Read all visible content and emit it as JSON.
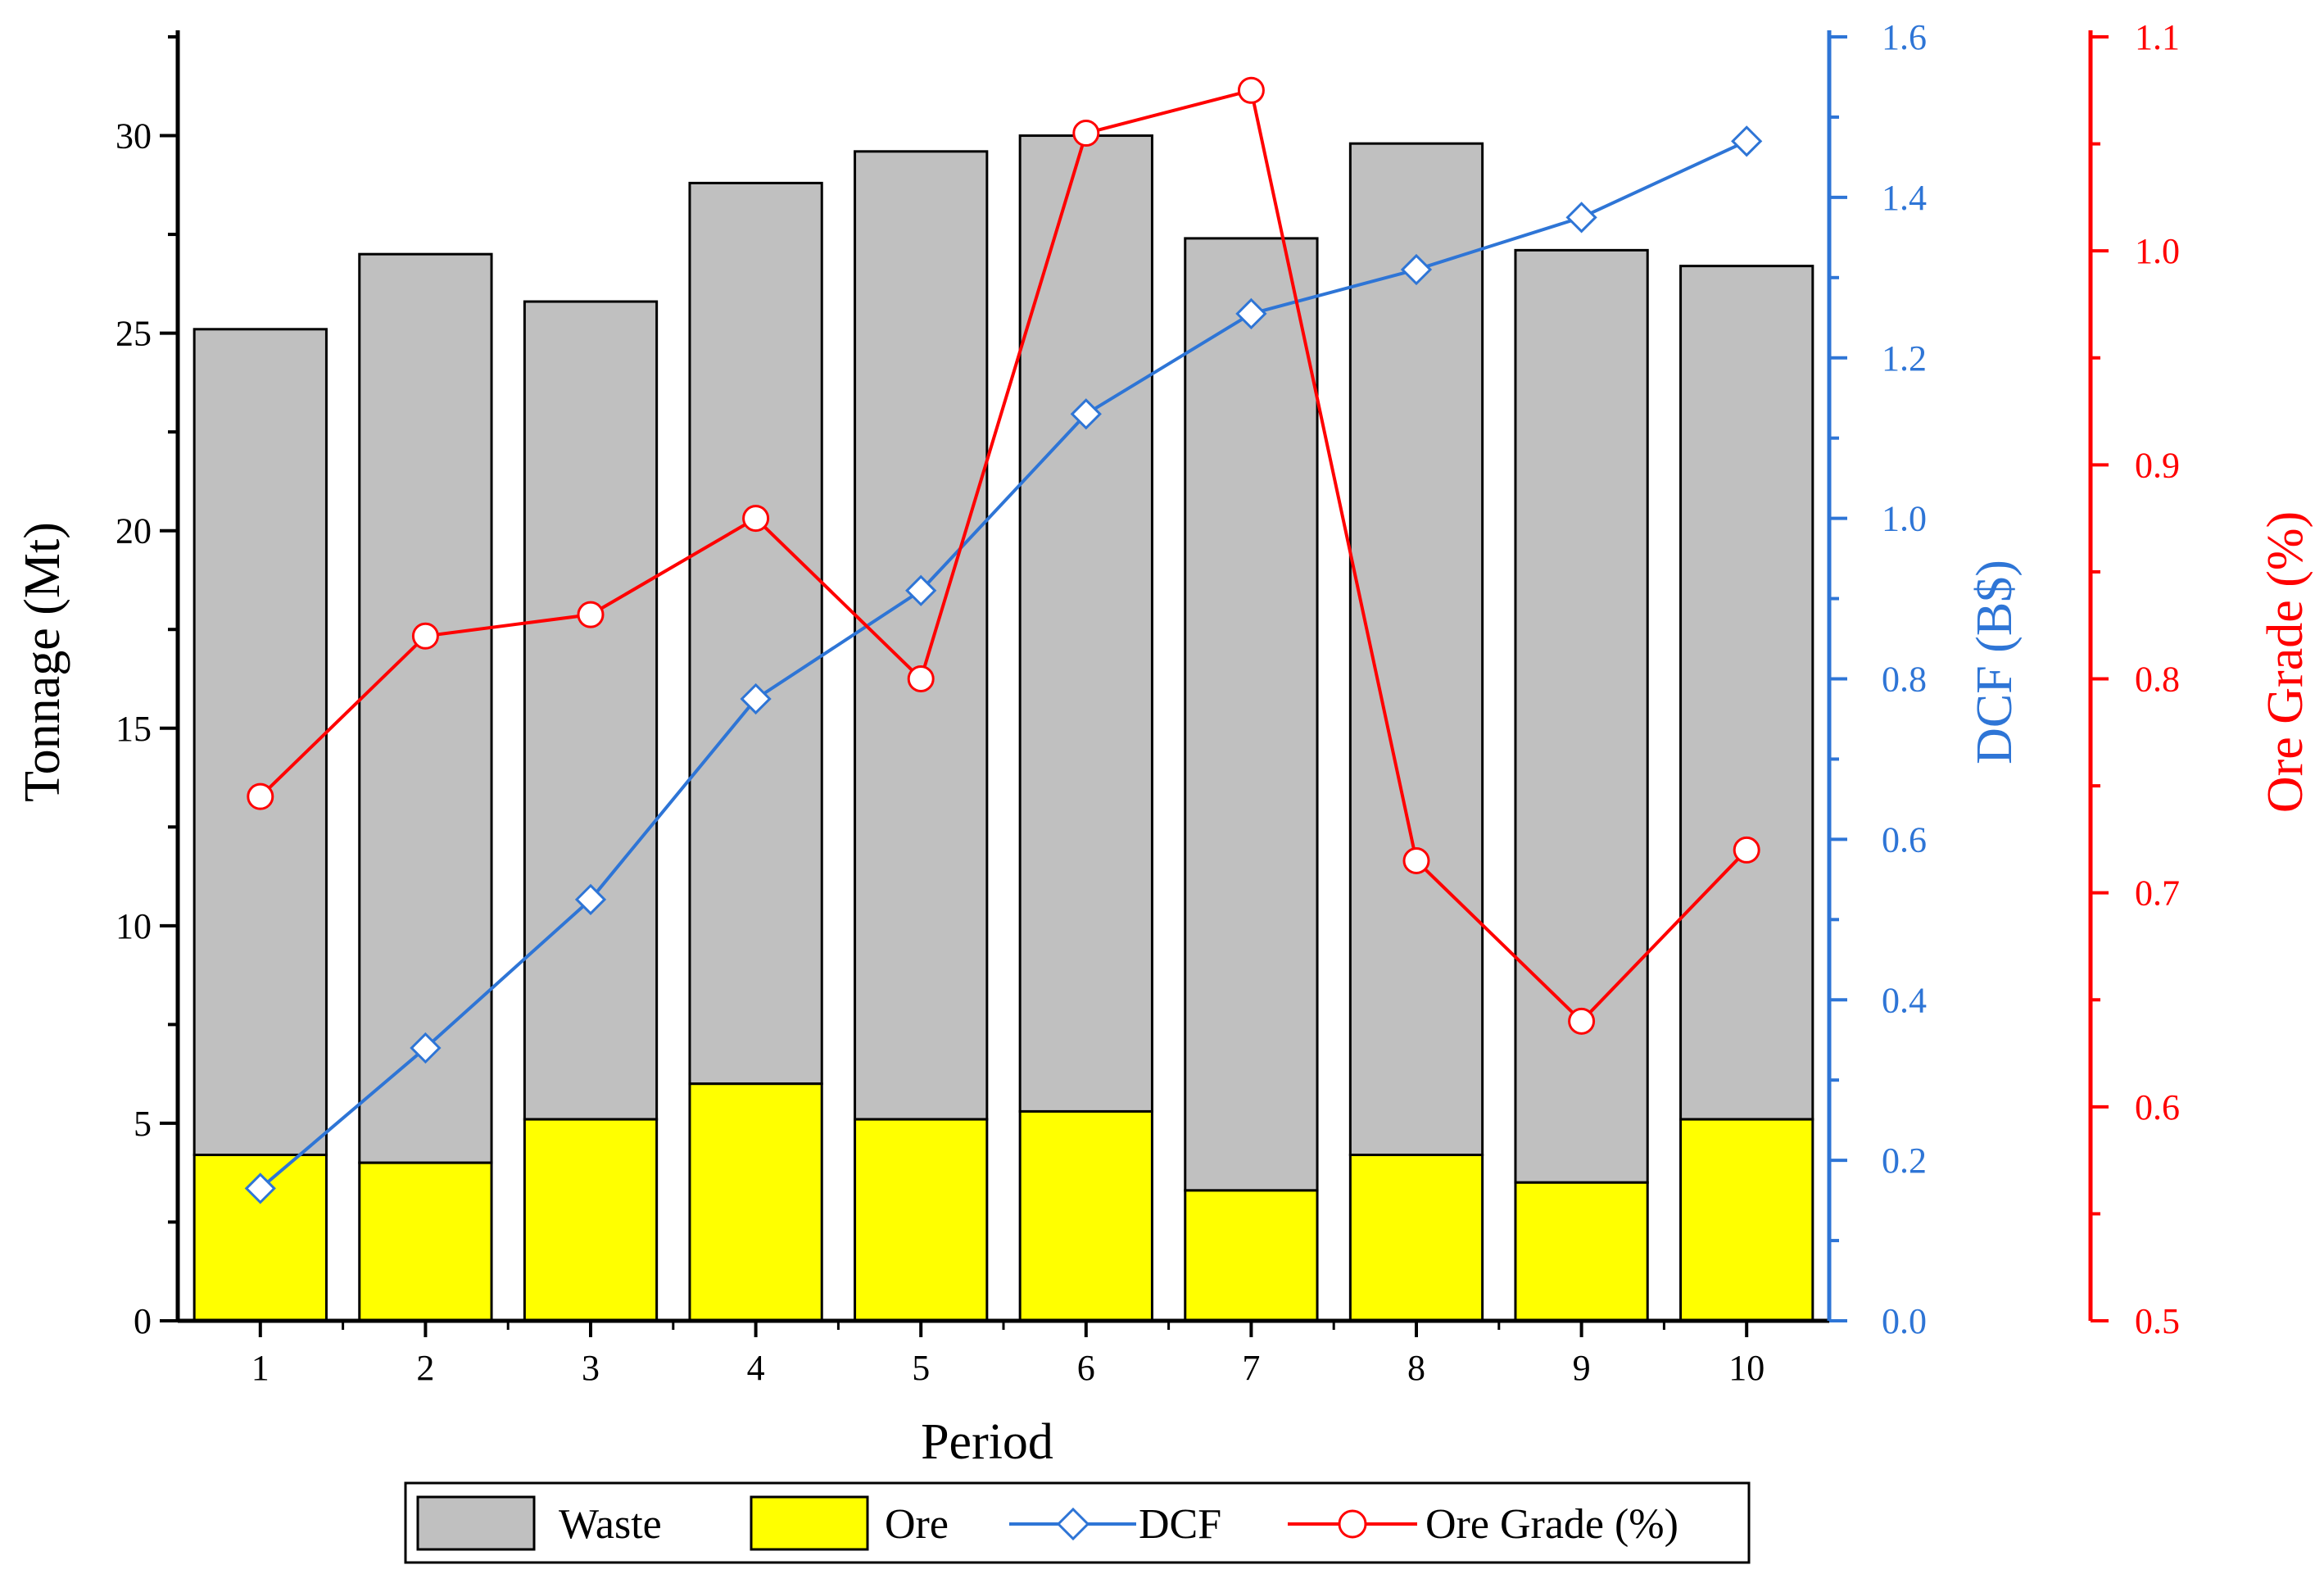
{
  "chart_data": {
    "type": "bar",
    "stacked": true,
    "xlabel": "Period",
    "ylabel_left": "Tonnage (Mt)",
    "ylabel_right1": "DCF (B$)",
    "ylabel_right2": "Ore Grade (%)",
    "categories": [
      "1",
      "2",
      "3",
      "4",
      "5",
      "6",
      "7",
      "8",
      "9",
      "10"
    ],
    "ylim_left": [
      0,
      32.5
    ],
    "ylim_dcf": [
      0,
      1.6
    ],
    "ylim_grade": [
      0.5,
      1.1
    ],
    "left_ticks": [
      "0",
      "5",
      "10",
      "15",
      "20",
      "25",
      "30"
    ],
    "dcf_ticks": [
      "0.0",
      "0.2",
      "0.4",
      "0.6",
      "0.8",
      "1.0",
      "1.2",
      "1.4",
      "1.6"
    ],
    "grade_ticks": [
      "0.5",
      "0.6",
      "0.7",
      "0.8",
      "0.9",
      "1.0",
      "1.1"
    ],
    "series": [
      {
        "name": "Ore",
        "type": "bar",
        "axis": "left",
        "color": "#ffff00",
        "values": [
          4.2,
          4.0,
          5.1,
          6.0,
          5.1,
          5.3,
          3.3,
          4.2,
          3.5,
          5.1
        ]
      },
      {
        "name": "Waste",
        "type": "bar",
        "axis": "left",
        "color": "#c0c0c0",
        "values": [
          20.9,
          23.0,
          20.7,
          22.8,
          24.5,
          24.7,
          24.1,
          25.6,
          23.6,
          21.6
        ]
      },
      {
        "name": "DCF",
        "type": "line",
        "axis": "dcf",
        "marker": "diamond",
        "color": "#2e75d6",
        "values": [
          0.165,
          0.34,
          0.525,
          0.775,
          0.91,
          1.13,
          1.255,
          1.31,
          1.375,
          1.47
        ]
      },
      {
        "name": "Ore Grade (%)",
        "type": "line",
        "axis": "grade",
        "marker": "circle",
        "color": "#ff0000",
        "values": [
          0.745,
          0.82,
          0.83,
          0.875,
          0.8,
          1.055,
          1.075,
          0.715,
          0.64,
          0.72
        ]
      }
    ],
    "legend": [
      "Waste",
      "Ore",
      "DCF",
      "Ore Grade (%)"
    ],
    "legend_position": "bottom-center"
  },
  "colors": {
    "waste": "#c0c0c0",
    "ore": "#ffff00",
    "dcf": "#2e75d6",
    "grade": "#ff0000",
    "axis": "#000000"
  }
}
